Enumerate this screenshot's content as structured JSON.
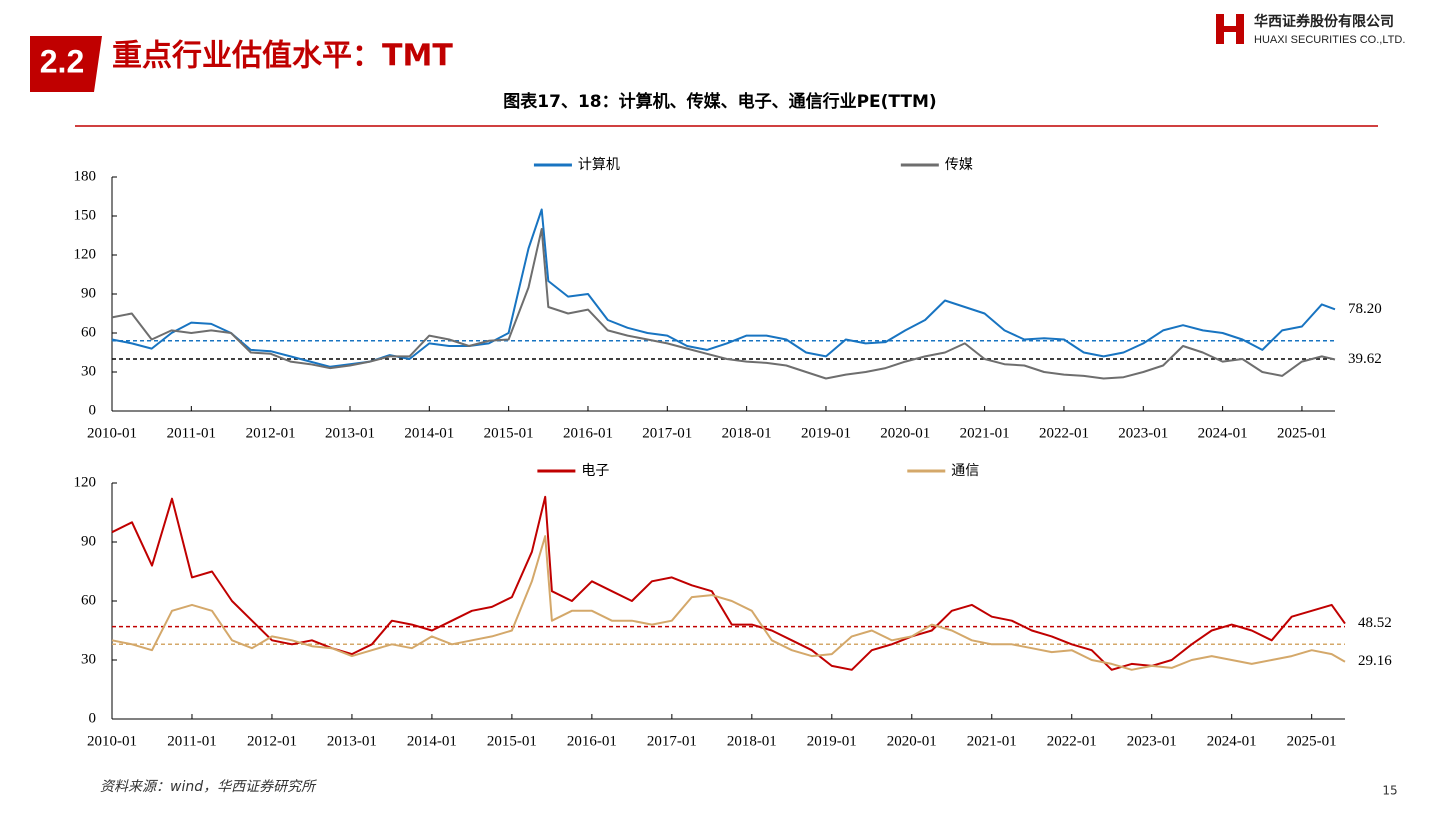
{
  "header": {
    "section": "2.2",
    "title": "重点行业估值水平：TMT",
    "company_cn": "华西证券股份有限公司",
    "company_en": "HUAXI SECURITIES CO.,LTD."
  },
  "figure_title": "图表17、18：计算机、传媒、电子、通信行业PE(TTM)",
  "source": "资料来源：wind，华西证券研究所",
  "page_number": "15",
  "chart_data": [
    {
      "type": "line",
      "legend": "top",
      "x": [
        "2010-01",
        "2010-04",
        "2010-07",
        "2010-10",
        "2011-01",
        "2011-04",
        "2011-07",
        "2011-10",
        "2012-01",
        "2012-04",
        "2012-07",
        "2012-10",
        "2013-01",
        "2013-04",
        "2013-07",
        "2013-10",
        "2014-01",
        "2014-04",
        "2014-07",
        "2014-10",
        "2015-01",
        "2015-04",
        "2015-06",
        "2015-07",
        "2015-10",
        "2016-01",
        "2016-04",
        "2016-07",
        "2016-10",
        "2017-01",
        "2017-04",
        "2017-07",
        "2017-10",
        "2018-01",
        "2018-04",
        "2018-07",
        "2018-10",
        "2019-01",
        "2019-04",
        "2019-07",
        "2019-10",
        "2020-01",
        "2020-04",
        "2020-07",
        "2020-10",
        "2021-01",
        "2021-04",
        "2021-07",
        "2021-10",
        "2022-01",
        "2022-04",
        "2022-07",
        "2022-10",
        "2023-01",
        "2023-04",
        "2023-07",
        "2023-10",
        "2024-01",
        "2024-04",
        "2024-07",
        "2024-10",
        "2025-01",
        "2025-04",
        "2025-06"
      ],
      "xlim": [
        "2010-01",
        "2025-06"
      ],
      "xticks": [
        "2010-01",
        "2011-01",
        "2012-01",
        "2013-01",
        "2014-01",
        "2015-01",
        "2016-01",
        "2017-01",
        "2018-01",
        "2019-01",
        "2020-01",
        "2021-01",
        "2022-01",
        "2023-01",
        "2024-01",
        "2025-01"
      ],
      "ylim": [
        0,
        180
      ],
      "yticks": [
        0,
        30,
        60,
        90,
        120,
        150,
        180
      ],
      "series": [
        {
          "name": "计算机",
          "color": "#1874c1",
          "label_color": "#1874c1",
          "values": [
            55,
            52,
            48,
            60,
            68,
            67,
            60,
            47,
            46,
            42,
            38,
            34,
            36,
            38,
            43,
            40,
            52,
            50,
            50,
            52,
            60,
            125,
            155,
            100,
            88,
            90,
            70,
            64,
            60,
            58,
            50,
            47,
            52,
            58,
            58,
            55,
            45,
            42,
            55,
            52,
            53,
            62,
            70,
            85,
            80,
            75,
            62,
            55,
            56,
            55,
            45,
            42,
            45,
            52,
            62,
            66,
            62,
            60,
            55,
            47,
            62,
            65,
            82,
            78.2
          ],
          "value_labels": [
            null,
            null,
            null,
            null,
            null,
            null,
            null,
            null,
            null,
            null,
            null,
            null,
            null,
            null,
            null,
            null,
            null,
            null,
            null,
            null,
            null,
            null,
            null,
            null,
            null,
            null,
            null,
            null,
            null,
            null,
            null,
            null,
            null,
            null,
            null,
            null,
            null,
            null,
            null,
            null,
            null,
            null,
            null,
            null,
            null,
            null,
            null,
            null,
            null,
            null,
            null,
            null,
            null,
            null,
            null,
            null,
            null,
            null,
            null,
            null,
            null,
            null,
            null,
            "78.20"
          ]
        },
        {
          "name": "传媒",
          "color": "#6e6e6e",
          "label_color": "#000000",
          "values": [
            72,
            75,
            55,
            62,
            60,
            62,
            60,
            45,
            44,
            38,
            36,
            33,
            35,
            38,
            42,
            42,
            58,
            55,
            50,
            54,
            55,
            95,
            140,
            80,
            75,
            78,
            62,
            58,
            55,
            52,
            48,
            44,
            40,
            38,
            37,
            35,
            30,
            25,
            28,
            30,
            33,
            38,
            42,
            45,
            52,
            40,
            36,
            35,
            30,
            28,
            27,
            25,
            26,
            30,
            35,
            50,
            45,
            38,
            40,
            30,
            27,
            38,
            42,
            39.62
          ],
          "value_labels": [
            null,
            null,
            null,
            null,
            null,
            null,
            null,
            null,
            null,
            null,
            null,
            null,
            null,
            null,
            null,
            null,
            null,
            null,
            null,
            null,
            null,
            null,
            null,
            null,
            null,
            null,
            null,
            null,
            null,
            null,
            null,
            null,
            null,
            null,
            null,
            null,
            null,
            null,
            null,
            null,
            null,
            null,
            null,
            null,
            null,
            null,
            null,
            null,
            null,
            null,
            null,
            null,
            null,
            null,
            null,
            null,
            null,
            null,
            null,
            null,
            null,
            null,
            null,
            "39.62"
          ]
        }
      ],
      "ref_lines": [
        {
          "value": 54,
          "color": "#1874c1"
        },
        {
          "value": 40,
          "color": "#000000"
        }
      ]
    },
    {
      "type": "line",
      "legend": "top",
      "x": [
        "2010-01",
        "2010-04",
        "2010-07",
        "2010-10",
        "2011-01",
        "2011-04",
        "2011-07",
        "2011-10",
        "2012-01",
        "2012-04",
        "2012-07",
        "2012-10",
        "2013-01",
        "2013-04",
        "2013-07",
        "2013-10",
        "2014-01",
        "2014-04",
        "2014-07",
        "2014-10",
        "2015-01",
        "2015-04",
        "2015-06",
        "2015-07",
        "2015-10",
        "2016-01",
        "2016-04",
        "2016-07",
        "2016-10",
        "2017-01",
        "2017-04",
        "2017-07",
        "2017-10",
        "2018-01",
        "2018-04",
        "2018-07",
        "2018-10",
        "2019-01",
        "2019-04",
        "2019-07",
        "2019-10",
        "2020-01",
        "2020-04",
        "2020-07",
        "2020-10",
        "2021-01",
        "2021-04",
        "2021-07",
        "2021-10",
        "2022-01",
        "2022-04",
        "2022-07",
        "2022-10",
        "2023-01",
        "2023-04",
        "2023-07",
        "2023-10",
        "2024-01",
        "2024-04",
        "2024-07",
        "2024-10",
        "2025-01",
        "2025-04",
        "2025-06"
      ],
      "xlim": [
        "2010-01",
        "2025-06"
      ],
      "xticks": [
        "2010-01",
        "2011-01",
        "2012-01",
        "2013-01",
        "2014-01",
        "2015-01",
        "2016-01",
        "2017-01",
        "2018-01",
        "2019-01",
        "2020-01",
        "2021-01",
        "2022-01",
        "2023-01",
        "2024-01",
        "2025-01"
      ],
      "ylim": [
        0,
        120
      ],
      "yticks": [
        0,
        30,
        60,
        90,
        120
      ],
      "series": [
        {
          "name": "电子",
          "color": "#c00000",
          "label_color": "#c00000",
          "values": [
            95,
            100,
            78,
            112,
            72,
            75,
            60,
            50,
            40,
            38,
            40,
            36,
            33,
            38,
            50,
            48,
            45,
            50,
            55,
            57,
            62,
            85,
            113,
            65,
            60,
            70,
            65,
            60,
            70,
            72,
            68,
            65,
            48,
            48,
            45,
            40,
            35,
            27,
            25,
            35,
            38,
            42,
            45,
            55,
            58,
            52,
            50,
            45,
            42,
            38,
            35,
            25,
            28,
            27,
            30,
            38,
            45,
            48,
            45,
            40,
            52,
            55,
            58,
            48.52
          ],
          "value_labels": [
            null,
            null,
            null,
            null,
            null,
            null,
            null,
            null,
            null,
            null,
            null,
            null,
            null,
            null,
            null,
            null,
            null,
            null,
            null,
            null,
            null,
            null,
            null,
            null,
            null,
            null,
            null,
            null,
            null,
            null,
            null,
            null,
            null,
            null,
            null,
            null,
            null,
            null,
            null,
            null,
            null,
            null,
            null,
            null,
            null,
            null,
            null,
            null,
            null,
            null,
            null,
            null,
            null,
            null,
            null,
            null,
            null,
            null,
            null,
            null,
            null,
            null,
            null,
            "48.52"
          ]
        },
        {
          "name": "通信",
          "color": "#d4a86a",
          "label_color": "#d4a86a",
          "values": [
            40,
            38,
            35,
            55,
            58,
            55,
            40,
            36,
            42,
            40,
            37,
            36,
            32,
            35,
            38,
            36,
            42,
            38,
            40,
            42,
            45,
            70,
            93,
            50,
            55,
            55,
            50,
            50,
            48,
            50,
            62,
            63,
            60,
            55,
            40,
            35,
            32,
            33,
            42,
            45,
            40,
            42,
            48,
            45,
            40,
            38,
            38,
            36,
            34,
            35,
            30,
            28,
            25,
            27,
            26,
            30,
            32,
            30,
            28,
            30,
            32,
            35,
            33,
            29.16
          ],
          "value_labels": [
            null,
            null,
            null,
            null,
            null,
            null,
            null,
            null,
            null,
            null,
            null,
            null,
            null,
            null,
            null,
            null,
            null,
            null,
            null,
            null,
            null,
            null,
            null,
            null,
            null,
            null,
            null,
            null,
            null,
            null,
            null,
            null,
            null,
            null,
            null,
            null,
            null,
            null,
            null,
            null,
            null,
            null,
            null,
            null,
            null,
            null,
            null,
            null,
            null,
            null,
            null,
            null,
            null,
            null,
            null,
            null,
            null,
            null,
            null,
            null,
            null,
            null,
            null,
            "29.16"
          ]
        }
      ],
      "ref_lines": [
        {
          "value": 47,
          "color": "#c00000"
        },
        {
          "value": 38,
          "color": "#d4a86a"
        }
      ]
    }
  ]
}
